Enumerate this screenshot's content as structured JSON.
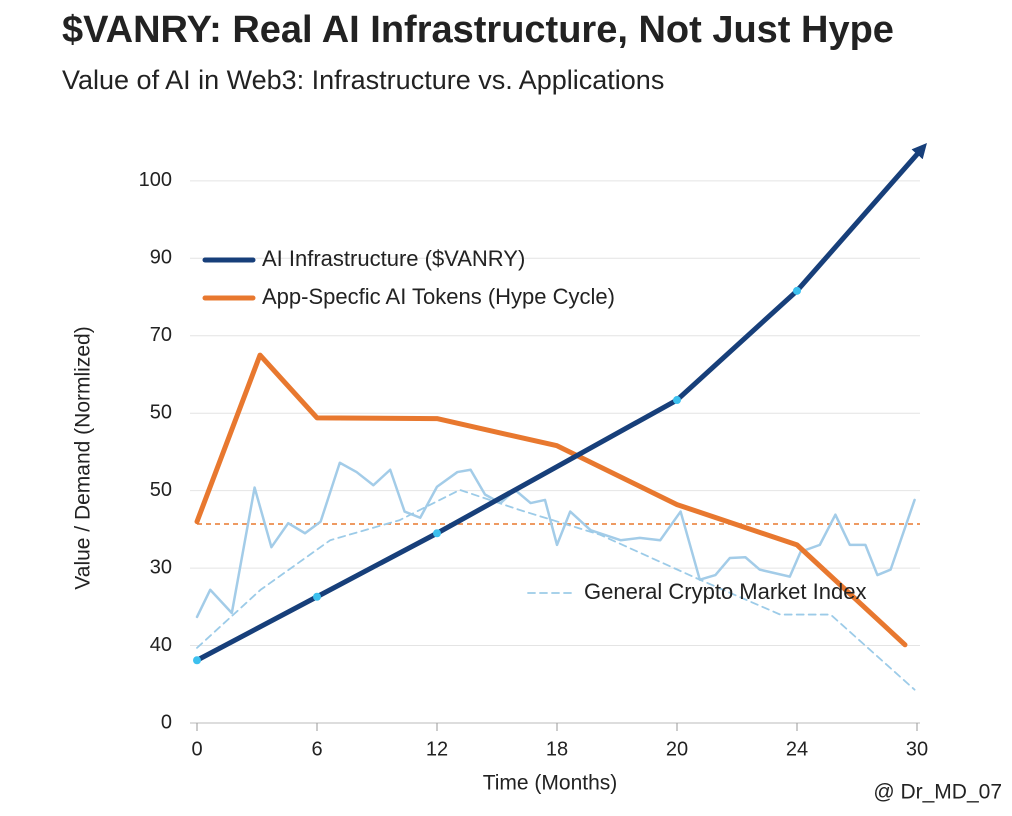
{
  "chart_data": {
    "type": "line",
    "title": "$VANRY: Real AI Infrastructure, Not Just Hype",
    "subtitle": "Value of AI in Web3: Infrastructure vs. Applications",
    "x_label": "Time (Months)",
    "y_label": "Value / Demand (Normlized)",
    "watermark": "@ Dr_MD_07",
    "xlim": [
      0,
      6.1
    ],
    "xticks": [
      0,
      {
        "value": 1,
        "label": "6"
      },
      {
        "value": 2,
        "label": "12"
      },
      {
        "value": 3,
        "label": "18"
      },
      {
        "value": 4,
        "label": "20"
      },
      {
        "value": 5,
        "label": "24"
      },
      {
        "value": 6,
        "label": "30"
      }
    ],
    "ylim": [
      0,
      7.45
    ],
    "yticks": [
      0,
      {
        "value": 1,
        "label": "40"
      },
      {
        "value": 2,
        "label": "30"
      },
      {
        "value": 3,
        "label": "50"
      },
      {
        "value": 4,
        "label": "50"
      },
      {
        "value": 5,
        "label": "70"
      },
      {
        "value": 6,
        "label": "90"
      },
      {
        "value": 7,
        "label": "100"
      }
    ],
    "grid": true,
    "reference_line": {
      "value": 2.57,
      "color": "#e8782f"
    },
    "series": [
      {
        "name": "AI Infrastructure ($VANRY)",
        "color": "#173f7a",
        "style": "solid",
        "width": 5,
        "x": [
          0,
          1,
          2,
          4,
          5,
          6.05
        ],
        "values": [
          0.81,
          1.63,
          2.45,
          4.17,
          5.58,
          7.43
        ]
      },
      {
        "name": "App-Specfic AI Tokens (Hype Cycle)",
        "color": "#e8782f",
        "style": "solid",
        "width": 5,
        "x": [
          0,
          0.525,
          1,
          2,
          3,
          4,
          5,
          5.9
        ],
        "values": [
          2.6,
          4.75,
          3.94,
          3.93,
          3.58,
          2.82,
          2.3,
          1.01
        ]
      },
      {
        "name": null,
        "color": "#a3cce8",
        "style": "solid",
        "width": 2.5,
        "x": [
          0,
          0.11,
          0.29,
          0.48,
          0.62,
          0.76,
          0.9,
          1.03,
          1.19,
          1.33,
          1.47,
          1.61,
          1.73,
          1.86,
          2,
          2.17,
          2.28,
          2.4,
          2.53,
          2.65,
          2.78,
          2.9,
          3,
          3.11,
          3.28,
          3.53,
          3.69,
          3.86,
          4.03,
          4.19,
          4.32,
          4.44,
          4.57,
          4.69,
          4.94,
          5.03,
          5.19,
          5.32,
          5.44,
          5.57,
          5.67,
          5.78,
          5.98
        ],
        "values": [
          1.37,
          1.72,
          1.42,
          3.04,
          2.27,
          2.58,
          2.45,
          2.6,
          3.36,
          3.24,
          3.07,
          3.27,
          2.73,
          2.65,
          3.05,
          3.24,
          3.27,
          2.95,
          2.84,
          3.01,
          2.84,
          2.88,
          2.3,
          2.73,
          2.49,
          2.36,
          2.39,
          2.36,
          2.73,
          1.85,
          1.91,
          2.13,
          2.14,
          1.98,
          1.89,
          2.21,
          2.3,
          2.69,
          2.3,
          2.3,
          1.91,
          1.98,
          2.88
        ]
      },
      {
        "name": "General Crypto Market Index",
        "color": "#9ccbe8",
        "style": "dashed",
        "width": 1.8,
        "x": [
          0,
          0.53,
          1.11,
          1.69,
          2.19,
          2.69,
          3.36,
          4.19,
          4.86,
          5.28,
          5.98
        ],
        "values": [
          0.97,
          1.72,
          2.36,
          2.62,
          3.01,
          2.75,
          2.43,
          1.85,
          1.4,
          1.4,
          0.43
        ]
      }
    ]
  }
}
